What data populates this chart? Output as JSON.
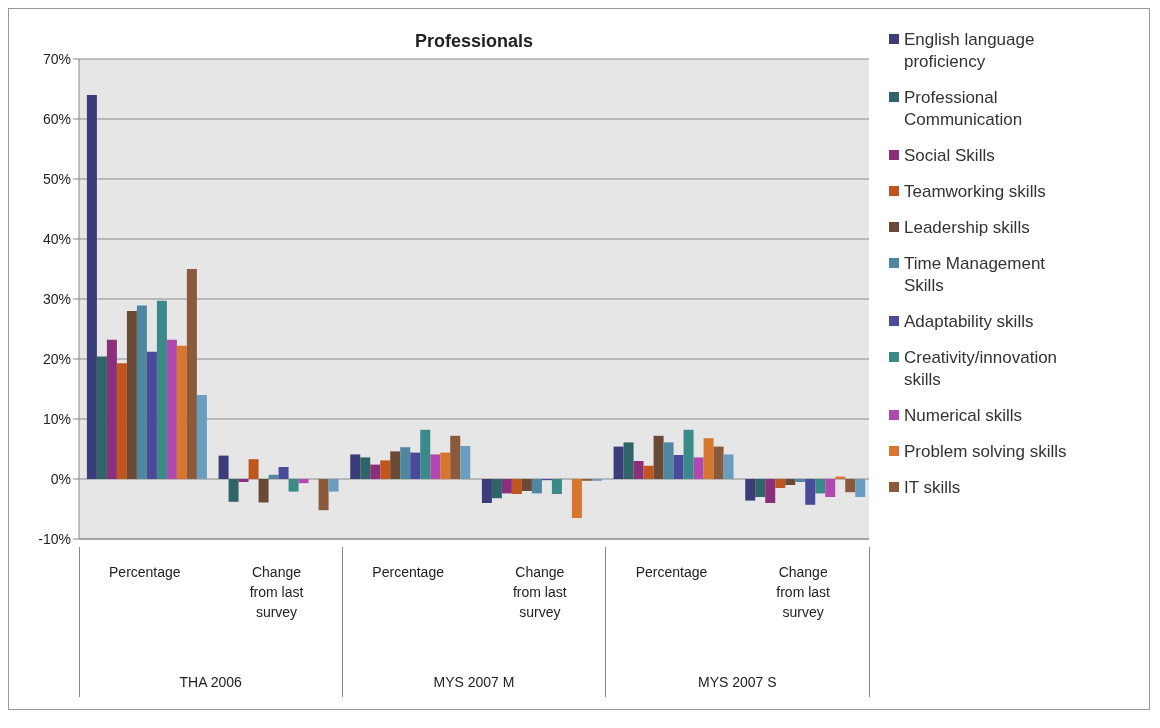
{
  "chart_data": {
    "type": "bar",
    "title": "Professionals",
    "categories": [
      "Percentage",
      "Change from last survey",
      "Percentage",
      "Change from last survey",
      "Percentage",
      "Change from last survey"
    ],
    "annotations": [
      "THA 2006",
      "MYS 2007 M",
      "MYS 2007 S"
    ],
    "series": [
      {
        "name": "English language proficiency",
        "color": "#3b3d7a",
        "values": [
          64,
          3.9,
          4.1,
          -4.0,
          5.4,
          -3.6
        ]
      },
      {
        "name": "Professional Communication",
        "color": "#2f6468",
        "values": [
          20.4,
          -3.8,
          3.6,
          -3.2,
          6.1,
          -3.0
        ]
      },
      {
        "name": "Social Skills",
        "color": "#8a2f7c",
        "values": [
          23.2,
          -0.5,
          2.4,
          -2.4,
          3.0,
          -4.0
        ]
      },
      {
        "name": "Teamworking skills",
        "color": "#c0561e",
        "values": [
          19.3,
          3.3,
          3.1,
          -2.5,
          2.2,
          -1.5
        ]
      },
      {
        "name": "Leadership skills",
        "color": "#6b4a35",
        "values": [
          28,
          -3.9,
          4.6,
          -2.0,
          7.2,
          -1.0
        ]
      },
      {
        "name": "Time Management Skills",
        "color": "#4f86a0",
        "values": [
          28.9,
          0.7,
          5.3,
          -2.4,
          6.1,
          -0.5
        ]
      },
      {
        "name": "Adaptability skills",
        "color": "#4a4a9a",
        "values": [
          21.2,
          2.0,
          4.4,
          -0.2,
          4.0,
          -4.3
        ]
      },
      {
        "name": "Creativity/innovation skills",
        "color": "#3a8a8a",
        "values": [
          29.7,
          -2.1,
          8.2,
          -2.5,
          8.2,
          -2.4
        ]
      },
      {
        "name": "Numerical skills",
        "color": "#b04ab0",
        "values": [
          23.2,
          -0.7,
          4.1,
          0,
          3.6,
          -3.0
        ]
      },
      {
        "name": "Problem solving skills",
        "color": "#d8752e",
        "values": [
          22.2,
          0,
          4.4,
          -6.5,
          6.8,
          0.4
        ]
      },
      {
        "name": "IT skills",
        "color": "#8a5a3a",
        "values": [
          35,
          -5.2,
          7.2,
          -0.3,
          5.4,
          -2.2
        ]
      },
      {
        "color": "#6a9ec0",
        "values": [
          14,
          -2.1,
          5.5,
          -0.3,
          4.1,
          -3.0
        ]
      }
    ],
    "ylim": [
      -10,
      70
    ],
    "yticks": [
      {
        "value": -10,
        "label": "-10%"
      },
      {
        "value": 0,
        "label": "0%"
      },
      {
        "value": 10,
        "label": "10%"
      },
      {
        "value": 20,
        "label": "20%"
      },
      {
        "value": 30,
        "label": "30%"
      },
      {
        "value": 40,
        "label": "40%"
      },
      {
        "value": 50,
        "label": "50%"
      },
      {
        "value": 60,
        "label": "60%"
      },
      {
        "value": 70,
        "label": "70%"
      }
    ],
    "grid": "y",
    "legend": "right"
  }
}
